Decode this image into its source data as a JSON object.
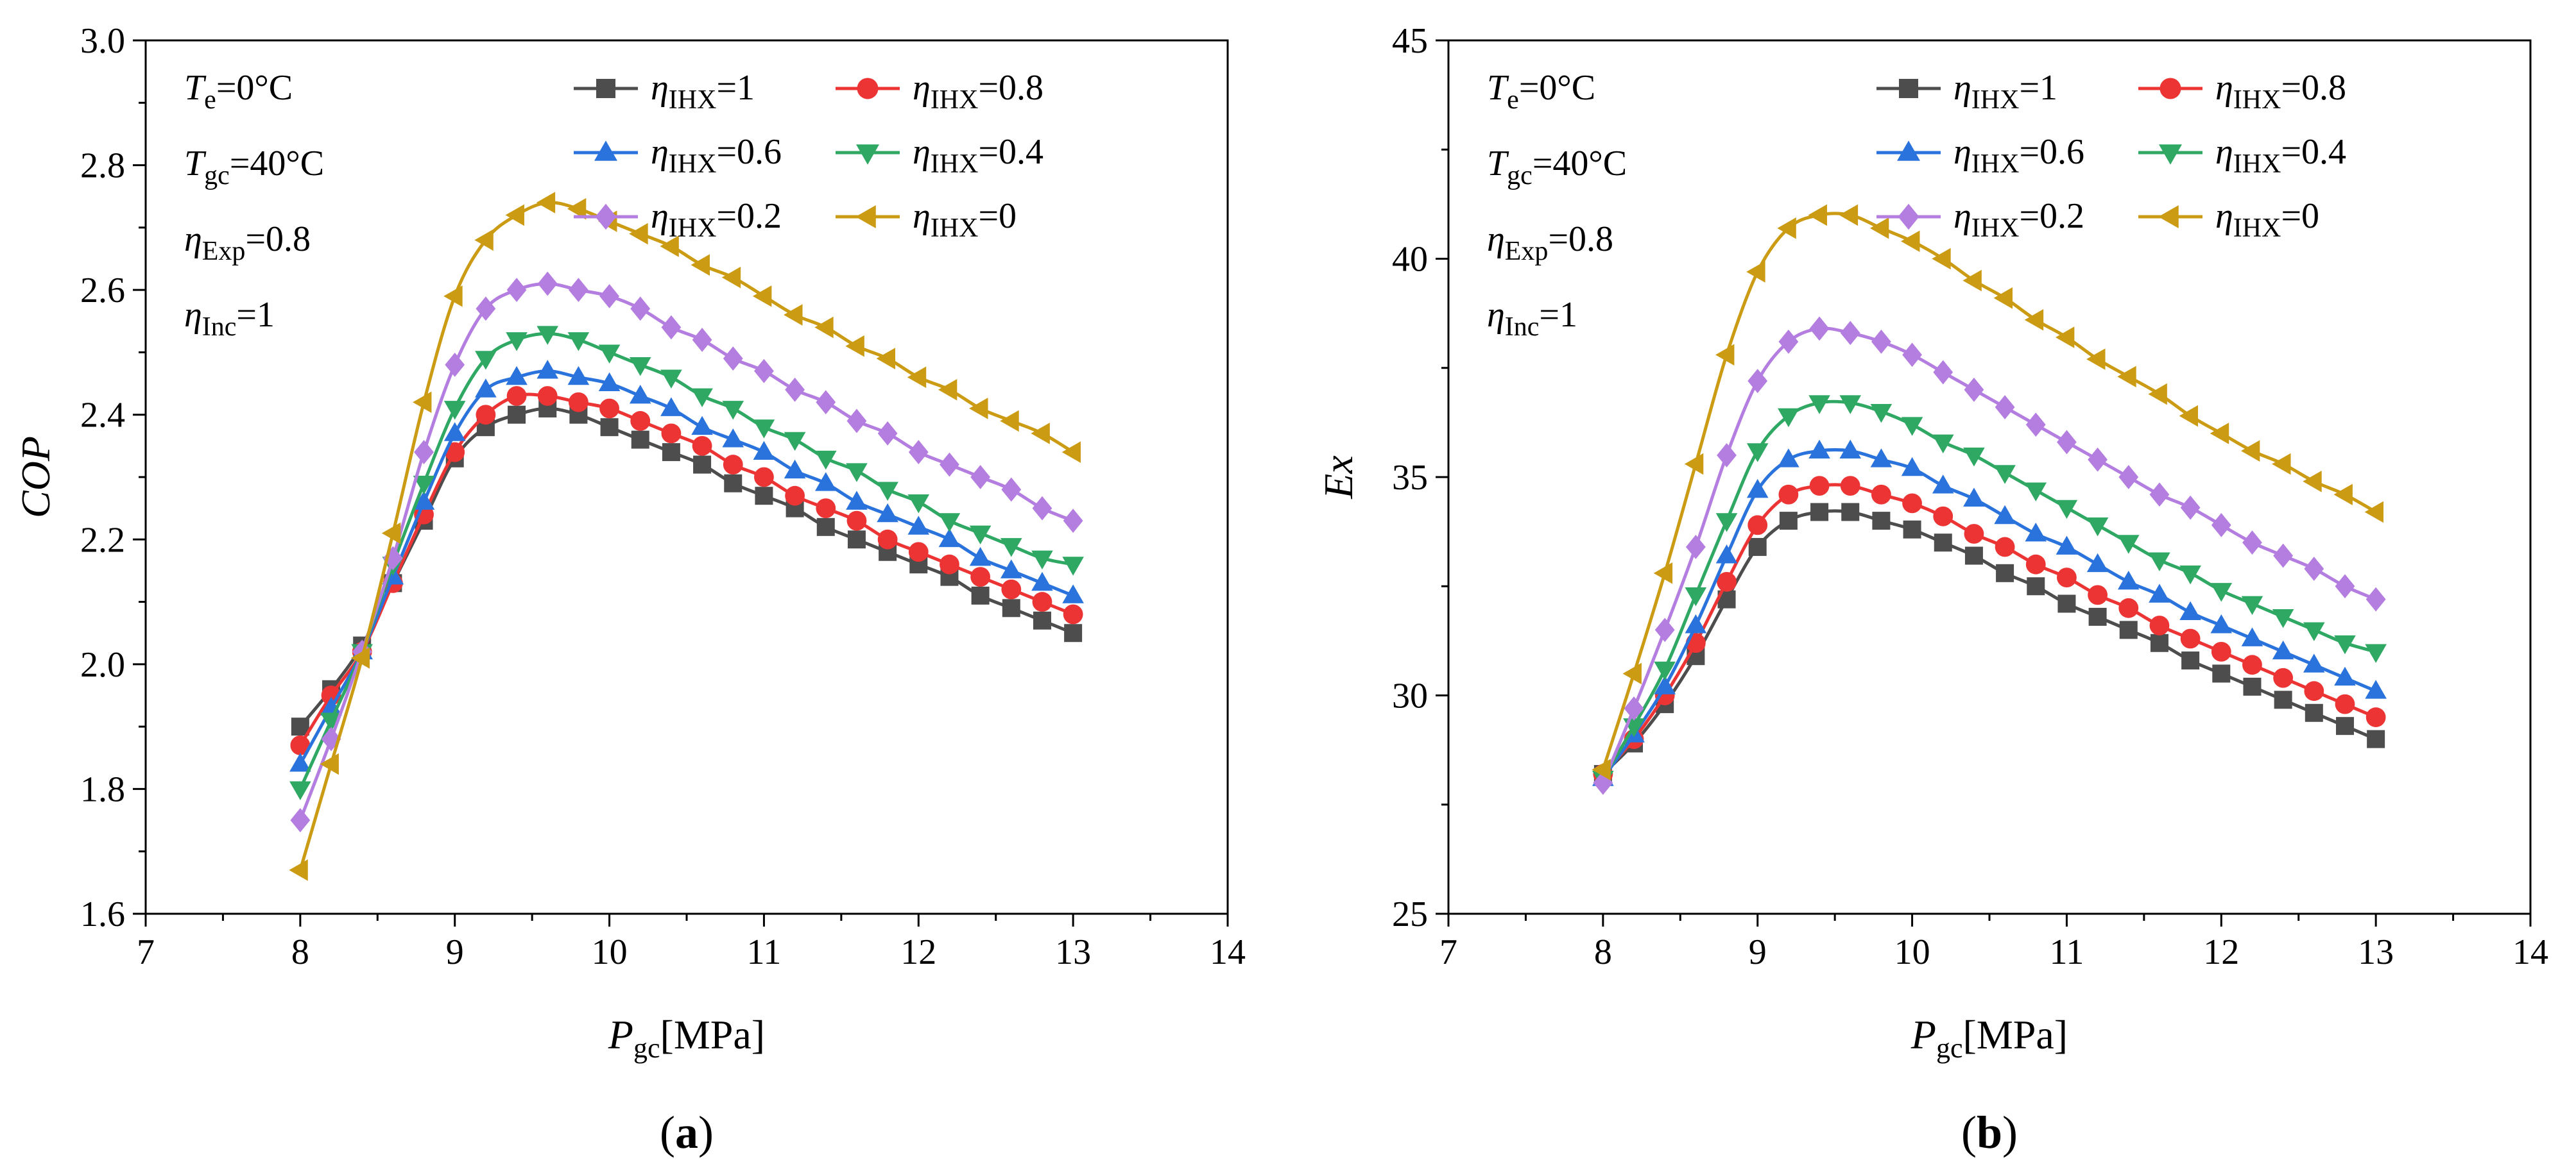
{
  "series_styles": [
    {
      "color": "#4d4d4d",
      "marker": "square"
    },
    {
      "color": "#ed3434",
      "marker": "circle"
    },
    {
      "color": "#2a73dc",
      "marker": "triangle-up"
    },
    {
      "color": "#2ea863",
      "marker": "triangle-down"
    },
    {
      "color": "#b47ee0",
      "marker": "diamond"
    },
    {
      "color": "#cc9b14",
      "marker": "triangle-left"
    }
  ],
  "chart_data": [
    {
      "type": "line",
      "panel_label": "(a)",
      "ylabel": "COP",
      "xlabel": {
        "main": "P",
        "sub": "gc",
        "suffix": "[MPa]"
      },
      "xlim": [
        7,
        14
      ],
      "ylim": [
        1.6,
        3.0
      ],
      "xticks": [
        "7",
        "8",
        "9",
        "10",
        "11",
        "12",
        "13",
        "14"
      ],
      "yticks": [
        "1.6",
        "1.8",
        "2.0",
        "2.2",
        "2.4",
        "2.6",
        "2.8",
        "3.0"
      ],
      "grid": false,
      "legend_position": "top-right",
      "conditions": [
        {
          "sym": "T",
          "sub": "e",
          "val": "=0°C"
        },
        {
          "sym": "T",
          "sub": "gc",
          "val": "=40°C"
        },
        {
          "sym": "η",
          "sub": "Exp",
          "val": "=0.8"
        },
        {
          "sym": "η",
          "sub": "Inc",
          "val": "=1"
        }
      ],
      "x": [
        8.0,
        8.2,
        8.4,
        8.6,
        8.8,
        9.0,
        9.2,
        9.4,
        9.6,
        9.8,
        10.0,
        10.2,
        10.4,
        10.6,
        10.8,
        11.0,
        11.2,
        11.4,
        11.6,
        11.8,
        12.0,
        12.2,
        12.4,
        12.6,
        12.8,
        13.0
      ],
      "series": [
        {
          "name": {
            "sym": "η",
            "sub": "IHX",
            "val": "=1"
          },
          "values": [
            1.9,
            1.96,
            2.03,
            2.13,
            2.23,
            2.33,
            2.38,
            2.4,
            2.41,
            2.4,
            2.38,
            2.36,
            2.34,
            2.32,
            2.29,
            2.27,
            2.25,
            2.22,
            2.2,
            2.18,
            2.16,
            2.14,
            2.11,
            2.09,
            2.07,
            2.05
          ]
        },
        {
          "name": {
            "sym": "η",
            "sub": "IHX",
            "val": "=0.8"
          },
          "values": [
            1.87,
            1.95,
            2.02,
            2.13,
            2.24,
            2.34,
            2.4,
            2.43,
            2.43,
            2.42,
            2.41,
            2.39,
            2.37,
            2.35,
            2.32,
            2.3,
            2.27,
            2.25,
            2.23,
            2.2,
            2.18,
            2.16,
            2.14,
            2.12,
            2.1,
            2.08
          ]
        },
        {
          "name": {
            "sym": "η",
            "sub": "IHX",
            "val": "=0.6"
          },
          "values": [
            1.84,
            1.93,
            2.02,
            2.14,
            2.26,
            2.37,
            2.44,
            2.46,
            2.47,
            2.46,
            2.45,
            2.43,
            2.41,
            2.38,
            2.36,
            2.34,
            2.31,
            2.29,
            2.26,
            2.24,
            2.22,
            2.2,
            2.17,
            2.15,
            2.13,
            2.11
          ]
        },
        {
          "name": {
            "sym": "η",
            "sub": "IHX",
            "val": "=0.4"
          },
          "values": [
            1.8,
            1.91,
            2.02,
            2.16,
            2.29,
            2.41,
            2.49,
            2.52,
            2.53,
            2.52,
            2.5,
            2.48,
            2.46,
            2.43,
            2.41,
            2.38,
            2.36,
            2.33,
            2.31,
            2.28,
            2.26,
            2.23,
            2.21,
            2.19,
            2.17,
            2.16
          ]
        },
        {
          "name": {
            "sym": "η",
            "sub": "IHX",
            "val": "=0.2"
          },
          "values": [
            1.75,
            1.88,
            2.02,
            2.17,
            2.34,
            2.48,
            2.57,
            2.6,
            2.61,
            2.6,
            2.59,
            2.57,
            2.54,
            2.52,
            2.49,
            2.47,
            2.44,
            2.42,
            2.39,
            2.37,
            2.34,
            2.32,
            2.3,
            2.28,
            2.25,
            2.23
          ]
        },
        {
          "name": {
            "sym": "η",
            "sub": "IHX",
            "val": "=0"
          },
          "values": [
            1.67,
            1.84,
            2.01,
            2.21,
            2.42,
            2.59,
            2.68,
            2.72,
            2.74,
            2.73,
            2.71,
            2.69,
            2.67,
            2.64,
            2.62,
            2.59,
            2.56,
            2.54,
            2.51,
            2.49,
            2.46,
            2.44,
            2.41,
            2.39,
            2.37,
            2.34
          ]
        }
      ]
    },
    {
      "type": "line",
      "panel_label": "(b)",
      "ylabel": "Ex",
      "xlabel": {
        "main": "P",
        "sub": "gc",
        "suffix": "[MPa]"
      },
      "xlim": [
        7,
        14
      ],
      "ylim": [
        25,
        45
      ],
      "xticks": [
        "7",
        "8",
        "9",
        "10",
        "11",
        "12",
        "13",
        "14"
      ],
      "yticks": [
        "25",
        "30",
        "35",
        "40",
        "45"
      ],
      "grid": false,
      "legend_position": "top-right",
      "conditions": [
        {
          "sym": "T",
          "sub": "e",
          "val": "=0°C"
        },
        {
          "sym": "T",
          "sub": "gc",
          "val": "=40°C"
        },
        {
          "sym": "η",
          "sub": "Exp",
          "val": "=0.8"
        },
        {
          "sym": "η",
          "sub": "Inc",
          "val": "=1"
        }
      ],
      "x": [
        8.0,
        8.2,
        8.4,
        8.6,
        8.8,
        9.0,
        9.2,
        9.4,
        9.6,
        9.8,
        10.0,
        10.2,
        10.4,
        10.6,
        10.8,
        11.0,
        11.2,
        11.4,
        11.6,
        11.8,
        12.0,
        12.2,
        12.4,
        12.6,
        12.8,
        13.0
      ],
      "series": [
        {
          "name": {
            "sym": "η",
            "sub": "IHX",
            "val": "=1"
          },
          "values": [
            28.2,
            28.9,
            29.8,
            30.9,
            32.2,
            33.4,
            34.0,
            34.2,
            34.2,
            34.0,
            33.8,
            33.5,
            33.2,
            32.8,
            32.5,
            32.1,
            31.8,
            31.5,
            31.2,
            30.8,
            30.5,
            30.2,
            29.9,
            29.6,
            29.3,
            29.0
          ]
        },
        {
          "name": {
            "sym": "η",
            "sub": "IHX",
            "val": "=0.8"
          },
          "values": [
            28.2,
            29.0,
            30.0,
            31.2,
            32.6,
            33.9,
            34.6,
            34.8,
            34.8,
            34.6,
            34.4,
            34.1,
            33.7,
            33.4,
            33.0,
            32.7,
            32.3,
            32.0,
            31.6,
            31.3,
            31.0,
            30.7,
            30.4,
            30.1,
            29.8,
            29.5
          ]
        },
        {
          "name": {
            "sym": "η",
            "sub": "IHX",
            "val": "=0.6"
          },
          "values": [
            28.1,
            29.1,
            30.2,
            31.6,
            33.2,
            34.7,
            35.4,
            35.6,
            35.6,
            35.4,
            35.2,
            34.8,
            34.5,
            34.1,
            33.7,
            33.4,
            33.0,
            32.6,
            32.3,
            31.9,
            31.6,
            31.3,
            31.0,
            30.7,
            30.4,
            30.1
          ]
        },
        {
          "name": {
            "sym": "η",
            "sub": "IHX",
            "val": "=0.4"
          },
          "values": [
            28.1,
            29.3,
            30.6,
            32.3,
            34.0,
            35.6,
            36.4,
            36.7,
            36.7,
            36.5,
            36.2,
            35.8,
            35.5,
            35.1,
            34.7,
            34.3,
            33.9,
            33.5,
            33.1,
            32.8,
            32.4,
            32.1,
            31.8,
            31.5,
            31.2,
            31.0
          ]
        },
        {
          "name": {
            "sym": "η",
            "sub": "IHX",
            "val": "=0.2"
          },
          "values": [
            28.0,
            29.7,
            31.5,
            33.4,
            35.5,
            37.2,
            38.1,
            38.4,
            38.3,
            38.1,
            37.8,
            37.4,
            37.0,
            36.6,
            36.2,
            35.8,
            35.4,
            35.0,
            34.6,
            34.3,
            33.9,
            33.5,
            33.2,
            32.9,
            32.5,
            32.2
          ]
        },
        {
          "name": {
            "sym": "η",
            "sub": "IHX",
            "val": "=0"
          },
          "values": [
            28.3,
            30.5,
            32.8,
            35.3,
            37.8,
            39.7,
            40.7,
            41.0,
            41.0,
            40.7,
            40.4,
            40.0,
            39.5,
            39.1,
            38.6,
            38.2,
            37.7,
            37.3,
            36.9,
            36.4,
            36.0,
            35.6,
            35.3,
            34.9,
            34.6,
            34.2
          ]
        }
      ]
    }
  ]
}
